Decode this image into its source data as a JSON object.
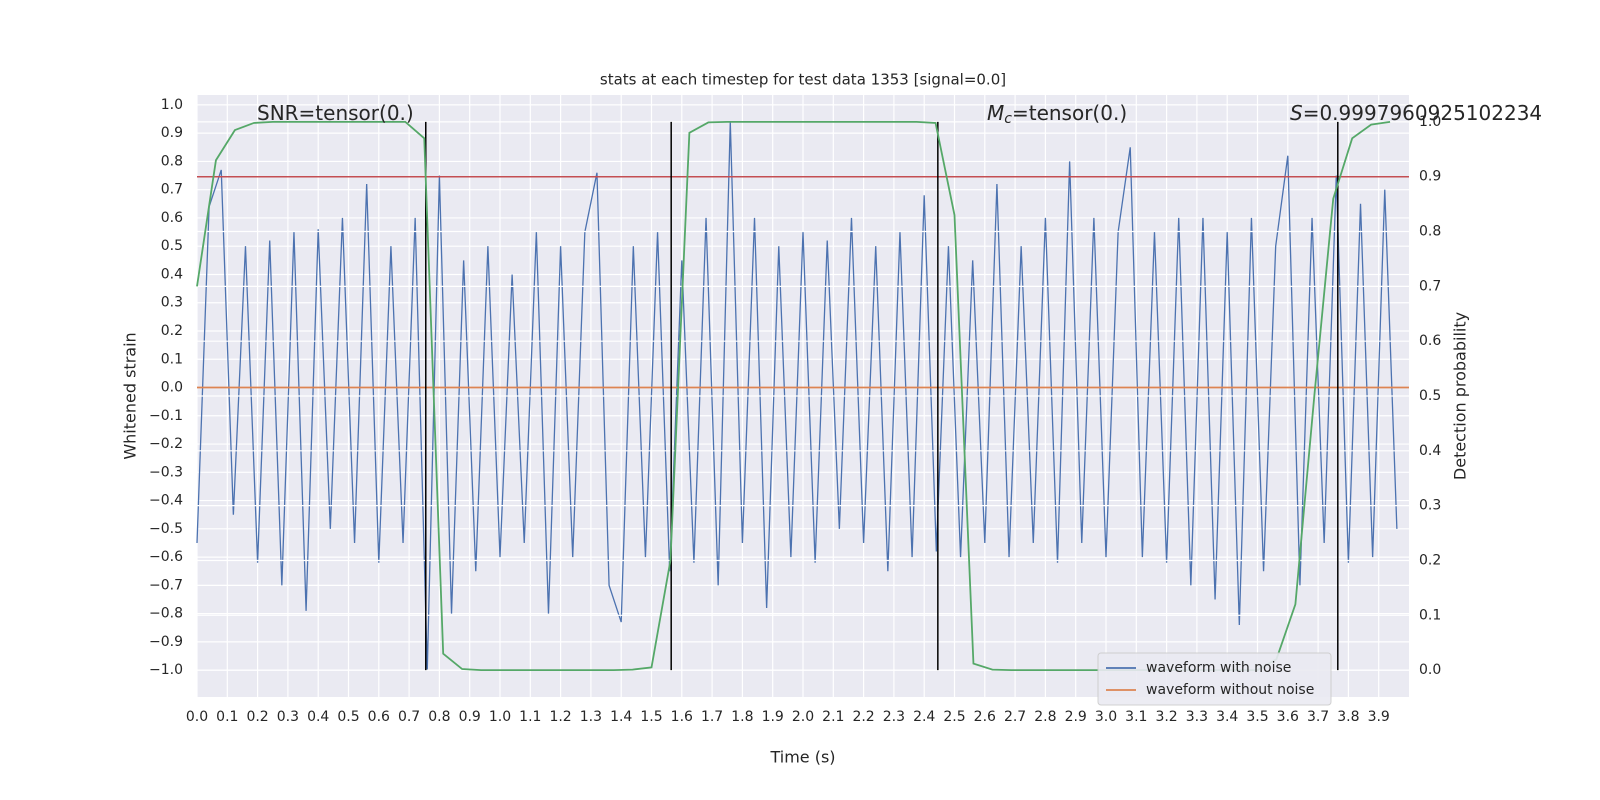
{
  "chart_data": {
    "type": "line",
    "title": "stats at each timestep for test data 1353 [signal=0.0]",
    "xlabel": "Time (s)",
    "ylabel": "Whitened strain",
    "y2label": "Detection probability",
    "xlim": [
      0,
      4.0
    ],
    "ylim": [
      -1.095,
      1.035
    ],
    "y2lim": [
      -0.049,
      1.049
    ],
    "grid": true,
    "legend": "lower right",
    "xticks": [
      {
        "value": 0,
        "label": "0.0"
      },
      0.1,
      0.2,
      0.3,
      0.4,
      0.5,
      0.6,
      0.7,
      0.8,
      0.9,
      {
        "value": 1,
        "label": "1.0"
      },
      1.1,
      1.2,
      1.3,
      1.4,
      1.5,
      1.6,
      1.7,
      1.8,
      1.9,
      {
        "value": 2,
        "label": "2.0"
      },
      2.1,
      2.2,
      2.3,
      2.4,
      2.5,
      2.6,
      2.7,
      2.8,
      2.9,
      {
        "value": 3,
        "label": "3.0"
      },
      3.1,
      3.2,
      3.3,
      3.4,
      3.5,
      3.6,
      3.7,
      3.8,
      3.9
    ],
    "yticks": [
      {
        "value": -1,
        "label": "−1.0"
      },
      {
        "value": -0.9,
        "label": "−0.9"
      },
      {
        "value": -0.8,
        "label": "−0.8"
      },
      {
        "value": -0.7,
        "label": "−0.7"
      },
      {
        "value": -0.6,
        "label": "−0.6"
      },
      {
        "value": -0.5,
        "label": "−0.5"
      },
      {
        "value": -0.4,
        "label": "−0.4"
      },
      {
        "value": -0.3,
        "label": "−0.3"
      },
      {
        "value": -0.2,
        "label": "−0.2"
      },
      {
        "value": -0.1,
        "label": "−0.1"
      },
      {
        "value": 0,
        "label": "0.0"
      },
      0.1,
      0.2,
      0.3,
      0.4,
      0.5,
      0.6,
      0.7,
      0.8,
      0.9,
      {
        "value": 1,
        "label": "1.0"
      }
    ],
    "y2ticks": [
      {
        "value": 0,
        "label": "0.0"
      },
      0.1,
      0.2,
      0.3,
      0.4,
      0.5,
      0.6,
      0.7,
      0.8,
      0.9,
      {
        "value": 1,
        "label": "1.0"
      }
    ],
    "series": [
      {
        "name": "waveform with noise",
        "color": "#4c72b0",
        "x": [
          0,
          0.04,
          0.08,
          0.12,
          0.16,
          0.2,
          0.24,
          0.28,
          0.32,
          0.36,
          0.4,
          0.44,
          0.48,
          0.52,
          0.56,
          0.6,
          0.64,
          0.68,
          0.72,
          0.76,
          0.8,
          0.84,
          0.88,
          0.92,
          0.96,
          1,
          1.04,
          1.08,
          1.12,
          1.16,
          1.2,
          1.24,
          1.28,
          1.32,
          1.36,
          1.4,
          1.44,
          1.48,
          1.52,
          1.56,
          1.6,
          1.64,
          1.68,
          1.72,
          1.76,
          1.8,
          1.84,
          1.88,
          1.92,
          1.96,
          2,
          2.04,
          2.08,
          2.12,
          2.16,
          2.2,
          2.24,
          2.28,
          2.32,
          2.36,
          2.4,
          2.44,
          2.48,
          2.52,
          2.56,
          2.6,
          2.64,
          2.68,
          2.72,
          2.76,
          2.8,
          2.84,
          2.88,
          2.92,
          2.96,
          3,
          3.04,
          3.08,
          3.12,
          3.16,
          3.2,
          3.24,
          3.28,
          3.32,
          3.36,
          3.4,
          3.44,
          3.48,
          3.52,
          3.56,
          3.6,
          3.64,
          3.68,
          3.72,
          3.76,
          3.8,
          3.84,
          3.88,
          3.92,
          3.96
        ],
        "values": [
          -0.55,
          0.64,
          0.77,
          -0.45,
          0.5,
          -0.62,
          0.52,
          -0.7,
          0.55,
          -0.79,
          0.56,
          -0.5,
          0.6,
          -0.55,
          0.72,
          -0.62,
          0.5,
          -0.55,
          0.6,
          -1.0,
          0.75,
          -0.8,
          0.45,
          -0.65,
          0.5,
          -0.6,
          0.4,
          -0.55,
          0.55,
          -0.8,
          0.5,
          -0.6,
          0.55,
          0.76,
          -0.7,
          -0.83,
          0.5,
          -0.6,
          0.55,
          -0.65,
          0.45,
          -0.62,
          0.6,
          -0.7,
          0.94,
          -0.55,
          0.6,
          -0.78,
          0.5,
          -0.6,
          0.55,
          -0.62,
          0.52,
          -0.5,
          0.6,
          -0.55,
          0.5,
          -0.65,
          0.55,
          -0.6,
          0.68,
          -0.58,
          0.5,
          -0.6,
          0.45,
          -0.55,
          0.72,
          -0.6,
          0.5,
          -0.55,
          0.6,
          -0.62,
          0.8,
          -0.55,
          0.6,
          -0.6,
          0.55,
          0.85,
          -0.6,
          0.55,
          -0.62,
          0.6,
          -0.7,
          0.6,
          -0.75,
          0.55,
          -0.84,
          0.6,
          -0.65,
          0.5,
          0.82,
          -0.7,
          0.6,
          -0.55,
          0.75,
          -0.62,
          0.65,
          -0.6,
          0.7,
          -0.5
        ]
      },
      {
        "name": "waveform without noise",
        "color": "#dd8452",
        "x": [
          0,
          4.0
        ],
        "values": [
          0,
          0
        ]
      },
      {
        "color": "#55a868",
        "axis": "y2",
        "x": [
          0,
          0.0625,
          0.125,
          0.1875,
          0.25,
          0.3125,
          0.375,
          0.4375,
          0.5,
          0.5625,
          0.625,
          0.6875,
          0.75,
          0.8125,
          0.875,
          0.9375,
          1,
          1.0625,
          1.125,
          1.1875,
          1.25,
          1.3125,
          1.375,
          1.4375,
          1.5,
          1.5625,
          1.625,
          1.6875,
          1.75,
          1.8125,
          1.875,
          1.9375,
          2,
          2.0625,
          2.125,
          2.1875,
          2.25,
          2.3125,
          2.375,
          2.4375,
          2.5,
          2.5625,
          2.625,
          2.6875,
          2.75,
          2.8125,
          2.875,
          2.9375,
          3,
          3.0625,
          3.125,
          3.1875,
          3.25,
          3.3125,
          3.375,
          3.4375,
          3.5,
          3.5625,
          3.625,
          3.6875,
          3.75,
          3.8125,
          3.875,
          3.9375
        ],
        "values": [
          0.7,
          0.93,
          0.985,
          0.998,
          1,
          1,
          1,
          1,
          1,
          1,
          1,
          1,
          0.97,
          0.03,
          0.002,
          0,
          0,
          0,
          0,
          0,
          0,
          0,
          0,
          0.001,
          0.005,
          0.2,
          0.98,
          0.999,
          1,
          1,
          1,
          1,
          1,
          1,
          1,
          1,
          1,
          1,
          1,
          0.998,
          0.83,
          0.012,
          0.001,
          0,
          0,
          0,
          0,
          0,
          0,
          0,
          0,
          0,
          0,
          0,
          0,
          0,
          0,
          0.02,
          0.12,
          0.5,
          0.86,
          0.97,
          0.995,
          1
        ]
      }
    ],
    "vlines": {
      "color": "#000000",
      "x": [
        0.755,
        1.565,
        2.445,
        3.765
      ]
    },
    "hlines": [
      {
        "value": 0.9,
        "axis": "y2",
        "color": "#c44e52"
      }
    ],
    "annotations": [
      {
        "text": "SNR=tensor(0.)"
      },
      {
        "symbol": "M",
        "subscript": "c",
        "text": "=tensor(0.)"
      },
      {
        "symbol": "S",
        "text": "=0.9997960925102234"
      }
    ]
  }
}
